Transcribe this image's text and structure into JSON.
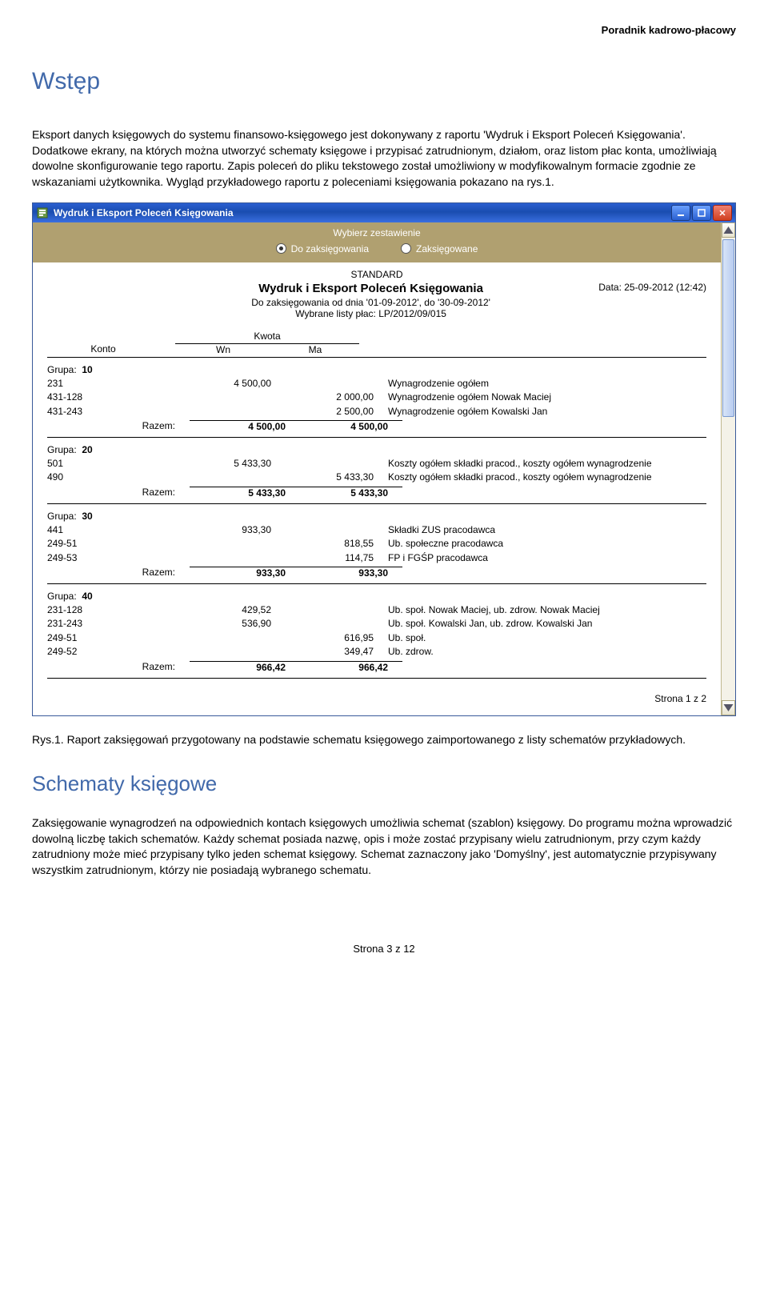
{
  "header_right": "Poradnik kadrowo-płacowy",
  "h1": "Wstęp",
  "p1": "Eksport danych księgowych do systemu finansowo-księgowego jest dokonywany z raportu 'Wydruk i Eksport Poleceń Księgowania'. Dodatkowe ekrany, na których można utworzyć schematy księgowe i przypisać zatrudnionym, działom, oraz listom płac konta, umożliwiają dowolne skonfigurowanie tego raportu. Zapis poleceń do pliku tekstowego został umożliwiony w modyfikowalnym formacie zgodnie ze wskazaniami użytkownika. Wygląd przykładowego raportu z poleceniami księgowania pokazano na rys.1.",
  "caption": "Rys.1. Raport zaksięgowań przygotowany na podstawie schematu księgowego zaimportowanego z listy schematów przykładowych.",
  "h2": "Schematy księgowe",
  "p2": "Zaksięgowanie wynagrodzeń na odpowiednich kontach księgowych umożliwia schemat (szablon) księgowy. Do programu można wprowadzić dowolną liczbę takich schematów. Każdy schemat posiada nazwę, opis i może zostać przypisany wielu zatrudnionym, przy czym każdy zatrudniony może mieć przypisany tylko jeden schemat księgowy. Schemat zaznaczony jako 'Domyślny', jest automatycznie przypisywany wszystkim zatrudnionym, którzy nie posiadają wybranego schematu.",
  "footer": "Strona 3 z 12",
  "window": {
    "title": "Wydruk i Eksport Poleceń Księgowania",
    "select_label": "Wybierz zestawienie",
    "radio1": "Do zaksięgowania",
    "radio2": "Zaksięgowane",
    "std": "STANDARD",
    "report_title": "Wydruk i Eksport Poleceń Księgowania",
    "date_label": "Data:  25-09-2012 (12:42)",
    "sub1": "Do zaksięgowania od dnia '01-09-2012', do '30-09-2012'",
    "sub2": "Wybrane listy płac: LP/2012/09/015",
    "col_kwota": "Kwota",
    "col_konto": "Konto",
    "col_wn": "Wn",
    "col_ma": "Ma",
    "groups": [
      {
        "label": "Grupa:",
        "num": "10",
        "rows": [
          {
            "konto": "231",
            "wn": "4 500,00",
            "ma": "",
            "desc": "Wynagrodzenie ogółem"
          },
          {
            "konto": "431-128",
            "wn": "",
            "ma": "2 000,00",
            "desc": "Wynagrodzenie ogółem Nowak Maciej"
          },
          {
            "konto": "431-243",
            "wn": "",
            "ma": "2 500,00",
            "desc": "Wynagrodzenie ogółem Kowalski Jan"
          }
        ],
        "sum_label": "Razem:",
        "sum_wn": "4 500,00",
        "sum_ma": "4 500,00"
      },
      {
        "label": "Grupa:",
        "num": "20",
        "rows": [
          {
            "konto": "501",
            "wn": "5 433,30",
            "ma": "",
            "desc": "Koszty ogółem składki pracod., koszty ogółem wynagrodzenie"
          },
          {
            "konto": "490",
            "wn": "",
            "ma": "5 433,30",
            "desc": "Koszty ogółem składki pracod., koszty ogółem wynagrodzenie"
          }
        ],
        "sum_label": "Razem:",
        "sum_wn": "5 433,30",
        "sum_ma": "5 433,30"
      },
      {
        "label": "Grupa:",
        "num": "30",
        "rows": [
          {
            "konto": "441",
            "wn": "933,30",
            "ma": "",
            "desc": "Składki ZUS pracodawca"
          },
          {
            "konto": "249-51",
            "wn": "",
            "ma": "818,55",
            "desc": "Ub. społeczne pracodawca"
          },
          {
            "konto": "249-53",
            "wn": "",
            "ma": "114,75",
            "desc": "FP i FGŚP pracodawca"
          }
        ],
        "sum_label": "Razem:",
        "sum_wn": "933,30",
        "sum_ma": "933,30"
      },
      {
        "label": "Grupa:",
        "num": "40",
        "rows": [
          {
            "konto": "231-128",
            "wn": "429,52",
            "ma": "",
            "desc": "Ub. społ. Nowak Maciej, ub. zdrow. Nowak Maciej"
          },
          {
            "konto": "231-243",
            "wn": "536,90",
            "ma": "",
            "desc": "Ub. społ. Kowalski Jan, ub. zdrow. Kowalski Jan"
          },
          {
            "konto": "249-51",
            "wn": "",
            "ma": "616,95",
            "desc": "Ub. społ."
          },
          {
            "konto": "249-52",
            "wn": "",
            "ma": "349,47",
            "desc": "Ub. zdrow."
          }
        ],
        "sum_label": "Razem:",
        "sum_wn": "966,42",
        "sum_ma": "966,42"
      }
    ],
    "page_footer": "Strona  1  z  2"
  }
}
